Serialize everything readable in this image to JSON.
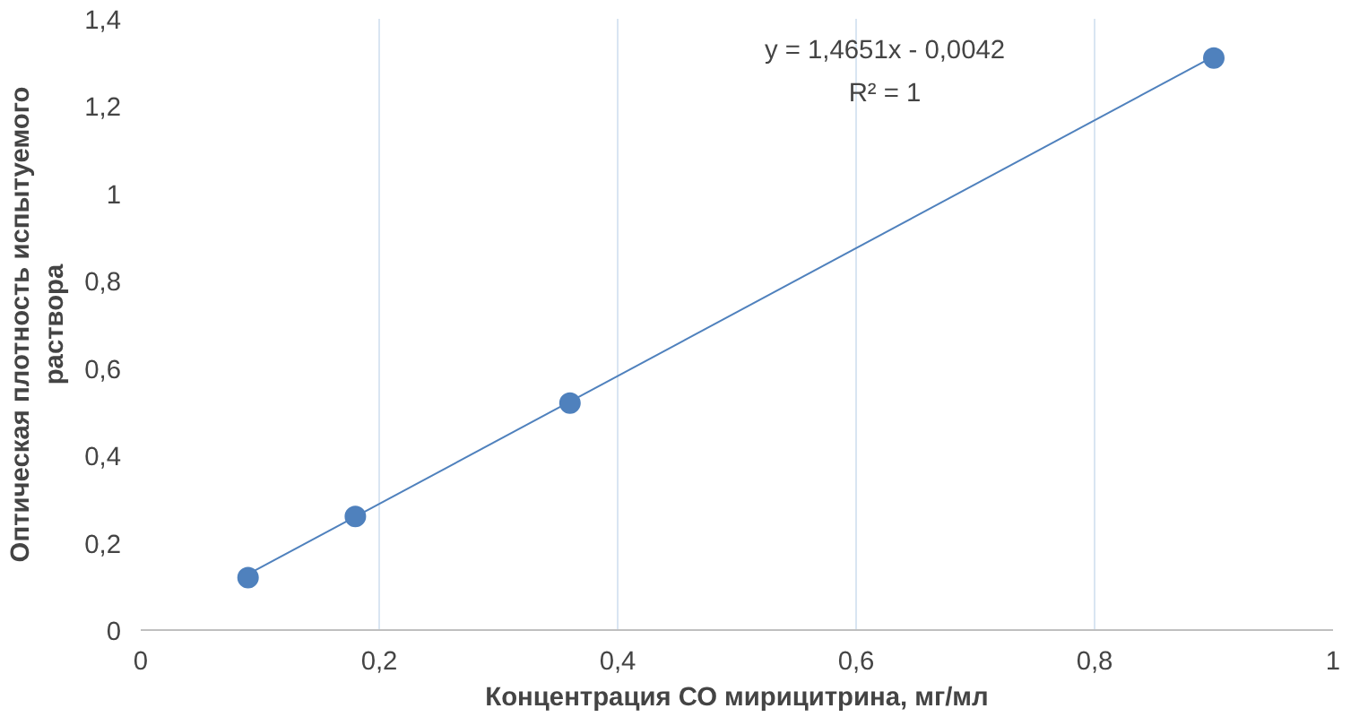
{
  "chart_data": {
    "type": "scatter",
    "xlabel": "Концентрация СО мирицитрина, мг/мл",
    "ylabel": "Оптическая плотность испытуемого\nраствора",
    "series": [
      {
        "color": "#4f81bd",
        "x": [
          0.09,
          0.18,
          0.36,
          0.9
        ],
        "values": [
          0.12,
          0.26,
          0.52,
          1.31
        ],
        "marker": "circle"
      },
      {
        "type": "line",
        "color": "#4f81bd",
        "x": [
          0.09,
          0.9
        ],
        "values": [
          0.128,
          1.314
        ],
        "line_style": "solid"
      }
    ],
    "xlim": [
      0,
      1
    ],
    "ylim": [
      0,
      1.4
    ],
    "xticks": [
      0,
      {
        "value": 0.2,
        "label": "0,2"
      },
      {
        "value": 0.4,
        "label": "0,4"
      },
      {
        "value": 0.6,
        "label": "0,6"
      },
      {
        "value": 0.8,
        "label": "0,8"
      },
      1
    ],
    "yticks": [
      0,
      {
        "value": 0.2,
        "label": "0,2"
      },
      {
        "value": 0.4,
        "label": "0,4"
      },
      {
        "value": 0.6,
        "label": "0,6"
      },
      {
        "value": 0.8,
        "label": "0,8"
      },
      1,
      {
        "value": 1.2,
        "label": "1,2"
      },
      {
        "value": 1.4,
        "label": "1,4"
      }
    ],
    "grid": "x",
    "annotations": [
      "y = 1,4651x - 0,0042",
      "R² = 1"
    ]
  }
}
